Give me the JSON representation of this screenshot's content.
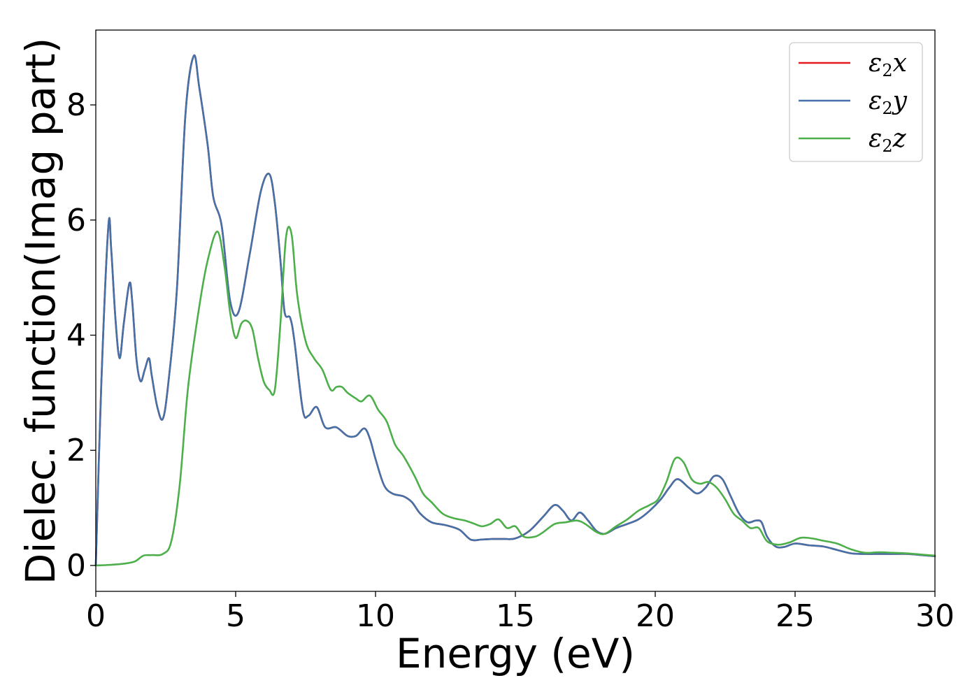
{
  "chart_data": {
    "type": "line",
    "xlabel": "Energy (eV)",
    "ylabel": "Dielec. function(Imag part)",
    "xlim": [
      0,
      30
    ],
    "ylim": [
      -0.45,
      9.3
    ],
    "xticks": [
      0,
      5,
      10,
      15,
      20,
      25,
      30
    ],
    "yticks": [
      0,
      2,
      4,
      6,
      8
    ],
    "grid": false,
    "legend_position": "top-right",
    "series": [
      {
        "name": "ε2x",
        "base": "ε",
        "sub": "2",
        "var": "x",
        "color": "#e41a1c",
        "x": [
          0,
          0.2,
          0.45,
          0.55,
          0.7,
          0.85,
          1.0,
          1.2,
          1.3,
          1.45,
          1.6,
          1.75,
          1.9,
          2.0,
          2.2,
          2.4,
          2.6,
          2.9,
          3.2,
          3.5,
          3.7,
          4.0,
          4.2,
          4.5,
          4.8,
          5.1,
          5.5,
          5.9,
          6.2,
          6.4,
          6.6,
          6.75,
          6.95,
          7.1,
          7.4,
          7.6,
          7.9,
          8.2,
          8.6,
          9.0,
          9.3,
          9.6,
          9.8,
          10.0,
          10.3,
          10.6,
          11.0,
          11.3,
          11.6,
          12.0,
          12.5,
          13.0,
          13.4,
          13.8,
          14.2,
          14.6,
          15.0,
          15.5,
          16.0,
          16.4,
          16.7,
          17.0,
          17.3,
          17.6,
          17.9,
          18.2,
          18.6,
          19.0,
          19.4,
          19.8,
          20.2,
          20.5,
          20.8,
          21.2,
          21.5,
          21.8,
          22.1,
          22.4,
          22.7,
          23.0,
          23.3,
          23.6,
          23.8,
          24.0,
          24.3,
          24.6,
          25.0,
          25.5,
          26.0,
          26.5,
          27.0,
          27.5,
          28.0,
          28.5,
          29.0,
          29.5,
          30.0
        ],
        "y": [
          0.0,
          3.2,
          5.9,
          5.5,
          4.3,
          3.6,
          4.2,
          4.9,
          4.6,
          3.6,
          3.2,
          3.4,
          3.6,
          3.3,
          2.75,
          2.55,
          3.2,
          4.8,
          7.8,
          8.85,
          8.3,
          7.3,
          6.4,
          5.9,
          4.6,
          4.4,
          5.4,
          6.5,
          6.8,
          6.3,
          5.3,
          4.4,
          4.3,
          3.9,
          2.7,
          2.6,
          2.75,
          2.4,
          2.4,
          2.25,
          2.25,
          2.38,
          2.2,
          1.85,
          1.4,
          1.25,
          1.2,
          1.1,
          0.9,
          0.75,
          0.7,
          0.62,
          0.45,
          0.45,
          0.46,
          0.46,
          0.47,
          0.6,
          0.85,
          1.05,
          0.95,
          0.78,
          0.92,
          0.78,
          0.6,
          0.55,
          0.65,
          0.72,
          0.8,
          0.95,
          1.15,
          1.35,
          1.5,
          1.35,
          1.25,
          1.35,
          1.55,
          1.5,
          1.2,
          0.9,
          0.75,
          0.78,
          0.75,
          0.5,
          0.33,
          0.32,
          0.38,
          0.35,
          0.33,
          0.27,
          0.21,
          0.2,
          0.2,
          0.2,
          0.2,
          0.18,
          0.16
        ]
      },
      {
        "name": "ε2y",
        "base": "ε",
        "sub": "2",
        "var": "y",
        "color": "#4472a8",
        "x": [
          0,
          0.2,
          0.45,
          0.55,
          0.7,
          0.85,
          1.0,
          1.2,
          1.3,
          1.45,
          1.6,
          1.75,
          1.9,
          2.0,
          2.2,
          2.4,
          2.6,
          2.9,
          3.2,
          3.5,
          3.7,
          4.0,
          4.2,
          4.5,
          4.8,
          5.1,
          5.5,
          5.9,
          6.2,
          6.4,
          6.6,
          6.75,
          6.95,
          7.1,
          7.4,
          7.6,
          7.9,
          8.2,
          8.6,
          9.0,
          9.3,
          9.6,
          9.8,
          10.0,
          10.3,
          10.6,
          11.0,
          11.3,
          11.6,
          12.0,
          12.5,
          13.0,
          13.4,
          13.8,
          14.2,
          14.6,
          15.0,
          15.5,
          16.0,
          16.4,
          16.7,
          17.0,
          17.3,
          17.6,
          17.9,
          18.2,
          18.6,
          19.0,
          19.4,
          19.8,
          20.2,
          20.5,
          20.8,
          21.2,
          21.5,
          21.8,
          22.1,
          22.4,
          22.7,
          23.0,
          23.3,
          23.6,
          23.8,
          24.0,
          24.3,
          24.6,
          25.0,
          25.5,
          26.0,
          26.5,
          27.0,
          27.5,
          28.0,
          28.5,
          29.0,
          29.5,
          30.0
        ],
        "y": [
          0.0,
          3.2,
          5.9,
          5.5,
          4.3,
          3.6,
          4.2,
          4.9,
          4.6,
          3.6,
          3.2,
          3.4,
          3.6,
          3.3,
          2.75,
          2.55,
          3.2,
          4.8,
          7.8,
          8.85,
          8.3,
          7.3,
          6.4,
          5.9,
          4.6,
          4.4,
          5.4,
          6.5,
          6.8,
          6.3,
          5.3,
          4.4,
          4.3,
          3.9,
          2.7,
          2.6,
          2.75,
          2.4,
          2.4,
          2.25,
          2.25,
          2.38,
          2.2,
          1.85,
          1.4,
          1.25,
          1.2,
          1.1,
          0.9,
          0.75,
          0.7,
          0.62,
          0.45,
          0.45,
          0.46,
          0.46,
          0.47,
          0.6,
          0.85,
          1.05,
          0.95,
          0.78,
          0.92,
          0.78,
          0.6,
          0.55,
          0.65,
          0.72,
          0.8,
          0.95,
          1.15,
          1.35,
          1.5,
          1.35,
          1.25,
          1.35,
          1.55,
          1.5,
          1.2,
          0.9,
          0.75,
          0.78,
          0.75,
          0.5,
          0.33,
          0.32,
          0.38,
          0.35,
          0.33,
          0.27,
          0.21,
          0.2,
          0.2,
          0.2,
          0.2,
          0.18,
          0.16
        ]
      },
      {
        "name": "ε2z",
        "base": "ε",
        "sub": "2",
        "var": "z",
        "color": "#4daf4a",
        "x": [
          0,
          0.5,
          1.0,
          1.4,
          1.7,
          2.0,
          2.4,
          2.7,
          3.0,
          3.3,
          3.7,
          4.0,
          4.35,
          4.6,
          4.8,
          5.0,
          5.2,
          5.4,
          5.6,
          5.8,
          6.0,
          6.2,
          6.4,
          6.6,
          6.8,
          7.0,
          7.2,
          7.5,
          7.8,
          8.1,
          8.4,
          8.6,
          8.8,
          9.0,
          9.3,
          9.5,
          9.8,
          10.1,
          10.4,
          10.7,
          11.0,
          11.4,
          11.7,
          12.0,
          12.4,
          12.8,
          13.2,
          13.5,
          13.8,
          14.1,
          14.4,
          14.7,
          15.0,
          15.3,
          15.7,
          16.0,
          16.4,
          16.8,
          17.2,
          17.5,
          17.9,
          18.2,
          18.6,
          19.0,
          19.4,
          19.8,
          20.1,
          20.4,
          20.7,
          21.0,
          21.3,
          21.6,
          21.9,
          22.2,
          22.5,
          22.8,
          23.1,
          23.4,
          23.7,
          24.0,
          24.4,
          24.8,
          25.2,
          25.6,
          26.0,
          26.5,
          27.0,
          27.5,
          28.0,
          28.5,
          29.0,
          29.5,
          30.0
        ],
        "y": [
          0.0,
          0.01,
          0.03,
          0.07,
          0.17,
          0.18,
          0.2,
          0.42,
          1.4,
          3.1,
          4.5,
          5.3,
          5.8,
          5.2,
          4.4,
          3.95,
          4.2,
          4.25,
          4.1,
          3.6,
          3.2,
          3.05,
          3.05,
          4.2,
          5.7,
          5.75,
          4.7,
          3.9,
          3.6,
          3.4,
          3.05,
          3.1,
          3.1,
          3.0,
          2.9,
          2.85,
          2.95,
          2.7,
          2.5,
          2.1,
          1.9,
          1.55,
          1.25,
          1.1,
          0.9,
          0.82,
          0.78,
          0.73,
          0.68,
          0.72,
          0.8,
          0.65,
          0.68,
          0.5,
          0.5,
          0.58,
          0.72,
          0.75,
          0.78,
          0.72,
          0.58,
          0.55,
          0.68,
          0.8,
          0.95,
          1.05,
          1.15,
          1.45,
          1.85,
          1.8,
          1.5,
          1.42,
          1.45,
          1.35,
          1.15,
          0.9,
          0.78,
          0.65,
          0.65,
          0.42,
          0.36,
          0.4,
          0.48,
          0.47,
          0.43,
          0.38,
          0.28,
          0.22,
          0.23,
          0.22,
          0.21,
          0.19,
          0.17
        ]
      }
    ]
  }
}
